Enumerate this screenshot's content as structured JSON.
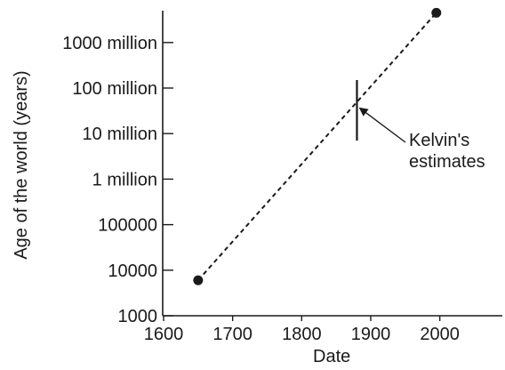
{
  "chart_data": {
    "type": "line",
    "title": "",
    "xlabel": "Date",
    "ylabel": "Age of the world (years)",
    "xlim": [
      1600,
      2100
    ],
    "ylim": [
      1000,
      10000000000
    ],
    "yscale": "log",
    "grid": false,
    "legend": "none",
    "x_ticks": [
      {
        "value": 1600,
        "label": "1600"
      },
      {
        "value": 1700,
        "label": "1700"
      },
      {
        "value": 1800,
        "label": "1800"
      },
      {
        "value": 1900,
        "label": "1900"
      },
      {
        "value": 2000,
        "label": "2000"
      }
    ],
    "y_ticks": [
      {
        "value": 1000,
        "label": "1000"
      },
      {
        "value": 10000,
        "label": "10000"
      },
      {
        "value": 100000,
        "label": "100000"
      },
      {
        "value": 1000000,
        "label": "1 million"
      },
      {
        "value": 10000000,
        "label": "10 million"
      },
      {
        "value": 100000000,
        "label": "100 million"
      },
      {
        "value": 1000000000,
        "label": "1000 million"
      }
    ],
    "series": [
      {
        "line_style": "dashed",
        "color": "#1a1a1a",
        "points": [
          {
            "x": 1650,
            "y": 6000
          },
          {
            "x": 1995,
            "y": 4500000000
          }
        ]
      }
    ],
    "range_bars": [
      {
        "x": 1880,
        "y_low": 7000000,
        "y_high": 150000000
      }
    ],
    "annotations": [
      {
        "lines": [
          "Kelvin's",
          "estimates"
        ],
        "points_to": {
          "x": 1880,
          "y": 40000000
        }
      }
    ]
  }
}
